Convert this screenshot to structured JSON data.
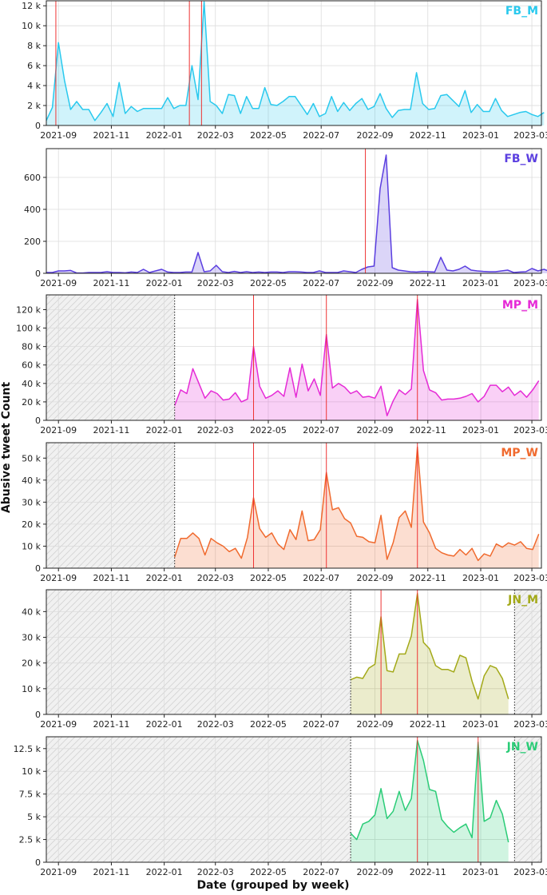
{
  "xlabel": "Date (grouped by week)",
  "ylabel": "Abusive tweet Count",
  "x_ticks": [
    "2021-09",
    "2021-11",
    "2022-01",
    "2022-03",
    "2022-05",
    "2022-07",
    "2022-09",
    "2022-11",
    "2023-01",
    "2023-03"
  ],
  "chart_data": [
    {
      "type": "area",
      "name": "FB_M",
      "color": "#29c9ee",
      "xlim": [
        "2021-08-18",
        "2023-03-12"
      ],
      "ylim": [
        0,
        12500
      ],
      "y_ticks": [
        {
          "v": 0,
          "label": "0"
        },
        {
          "v": 2000,
          "label": "2 k"
        },
        {
          "v": 4000,
          "label": "4 k"
        },
        {
          "v": 6000,
          "label": "6 k"
        },
        {
          "v": 8000,
          "label": "8 k"
        },
        {
          "v": 10000,
          "label": "10 k"
        },
        {
          "v": 12000,
          "label": "12 k"
        }
      ],
      "data_start": "2021-08-18",
      "values": [
        500,
        1800,
        8300,
        4500,
        1600,
        2400,
        1600,
        1600,
        500,
        1300,
        2200,
        900,
        4300,
        1200,
        1900,
        1400,
        1700,
        1700,
        1700,
        1700,
        2800,
        1700,
        2000,
        2000,
        6000,
        2600,
        12400,
        2400,
        2000,
        1200,
        3100,
        3000,
        1200,
        2900,
        1700,
        1700,
        3800,
        2100,
        2000,
        2400,
        2900,
        2900,
        2000,
        1100,
        2200,
        900,
        1200,
        2900,
        1400,
        2300,
        1500,
        2200,
        2700,
        1600,
        1900,
        3200,
        1700,
        800,
        1500,
        1600,
        1600,
        5300,
        2200,
        1600,
        1700,
        3000,
        3100,
        2500,
        1900,
        3500,
        1300,
        2100,
        1400,
        1400,
        2700,
        1500,
        900,
        1100,
        1300,
        1400,
        1100,
        900,
        1300
      ],
      "shade_before": null,
      "shade_after": null,
      "peaks": [
        "2021-08-29",
        "2022-01-30",
        "2022-02-13"
      ]
    },
    {
      "type": "area",
      "name": "FB_W",
      "color": "#5b3fe0",
      "xlim": [
        "2021-08-18",
        "2023-03-12"
      ],
      "ylim": [
        0,
        780
      ],
      "y_ticks": [
        {
          "v": 0,
          "label": "0"
        },
        {
          "v": 200,
          "label": "200"
        },
        {
          "v": 400,
          "label": "400"
        },
        {
          "v": 600,
          "label": "600"
        }
      ],
      "data_start": "2021-08-18",
      "values": [
        5,
        5,
        15,
        15,
        18,
        2,
        2,
        5,
        5,
        5,
        10,
        5,
        5,
        3,
        8,
        5,
        25,
        5,
        15,
        25,
        8,
        5,
        5,
        8,
        8,
        130,
        10,
        15,
        50,
        10,
        5,
        12,
        5,
        10,
        5,
        8,
        5,
        8,
        8,
        5,
        10,
        10,
        8,
        5,
        5,
        15,
        5,
        5,
        5,
        15,
        10,
        5,
        25,
        40,
        45,
        530,
        740,
        35,
        20,
        15,
        10,
        8,
        12,
        10,
        8,
        100,
        20,
        15,
        25,
        45,
        20,
        15,
        12,
        10,
        10,
        15,
        20,
        5,
        8,
        10,
        30,
        15,
        25,
        10,
        8,
        10,
        8
      ],
      "shade_before": null,
      "shade_after": null,
      "peaks": [
        "2022-08-21"
      ]
    },
    {
      "type": "area",
      "name": "MP_M",
      "color": "#e52ad6",
      "xlim": [
        "2021-08-18",
        "2023-03-12"
      ],
      "ylim": [
        0,
        136000
      ],
      "y_ticks": [
        {
          "v": 0,
          "label": "0"
        },
        {
          "v": 20000,
          "label": "20 k"
        },
        {
          "v": 40000,
          "label": "40 k"
        },
        {
          "v": 60000,
          "label": "60 k"
        },
        {
          "v": 80000,
          "label": "80 k"
        },
        {
          "v": 100000,
          "label": "100 k"
        },
        {
          "v": 120000,
          "label": "120 k"
        }
      ],
      "data_start": "2022-01-13",
      "values": [
        16000,
        33000,
        29000,
        56000,
        40000,
        24000,
        32000,
        29000,
        22000,
        23000,
        30000,
        20000,
        23000,
        80000,
        37000,
        24000,
        27000,
        32000,
        26000,
        57000,
        25000,
        61000,
        32000,
        45000,
        27000,
        93000,
        35000,
        40000,
        36000,
        29000,
        32000,
        25000,
        26000,
        24000,
        37000,
        5000,
        21000,
        33000,
        28000,
        34000,
        131000,
        54000,
        33000,
        30000,
        22000,
        23000,
        23000,
        24000,
        26000,
        29000,
        20000,
        26000,
        38000,
        38000,
        31000,
        36000,
        27000,
        32000,
        25000,
        33000,
        43000
      ],
      "shade_before": "2022-01-13",
      "shade_after": null,
      "peaks": [
        "2022-04-14",
        "2022-07-07",
        "2022-10-20"
      ]
    },
    {
      "type": "area",
      "name": "MP_W",
      "color": "#f06a2e",
      "xlim": [
        "2021-08-18",
        "2023-03-12"
      ],
      "ylim": [
        0,
        57000
      ],
      "y_ticks": [
        {
          "v": 0,
          "label": "0"
        },
        {
          "v": 10000,
          "label": "10 k"
        },
        {
          "v": 20000,
          "label": "20 k"
        },
        {
          "v": 30000,
          "label": "30 k"
        },
        {
          "v": 40000,
          "label": "40 k"
        },
        {
          "v": 50000,
          "label": "50 k"
        }
      ],
      "data_start": "2022-01-13",
      "values": [
        5000,
        13500,
        13500,
        16000,
        13500,
        6000,
        13500,
        11500,
        10000,
        7500,
        9000,
        4500,
        14000,
        32000,
        18000,
        14000,
        16000,
        11000,
        8500,
        17500,
        13000,
        26000,
        12500,
        13000,
        17500,
        43500,
        26500,
        27500,
        22500,
        20500,
        14500,
        14000,
        12000,
        11500,
        24000,
        4000,
        11500,
        23000,
        26000,
        18500,
        55000,
        21000,
        16000,
        9000,
        7000,
        6000,
        5500,
        8500,
        6000,
        9000,
        3500,
        6500,
        5500,
        11000,
        9500,
        11500,
        10500,
        12000,
        9000,
        8500,
        15500
      ],
      "shade_before": "2022-01-13",
      "shade_after": null,
      "peaks": [
        "2022-04-14",
        "2022-07-07",
        "2022-10-20"
      ]
    },
    {
      "type": "area",
      "name": "JN_M",
      "color": "#a3a918",
      "xlim": [
        "2021-08-18",
        "2023-03-12"
      ],
      "ylim": [
        0,
        48500
      ],
      "y_ticks": [
        {
          "v": 0,
          "label": "0"
        },
        {
          "v": 10000,
          "label": "10 k"
        },
        {
          "v": 20000,
          "label": "20 k"
        },
        {
          "v": 30000,
          "label": "30 k"
        },
        {
          "v": 40000,
          "label": "40 k"
        }
      ],
      "data_start": "2022-08-04",
      "values": [
        13500,
        14500,
        14000,
        18000,
        19500,
        38000,
        17000,
        16500,
        23500,
        23500,
        30500,
        47000,
        28000,
        25500,
        19000,
        17500,
        17500,
        16500,
        23000,
        22000,
        13000,
        6000,
        15000,
        19000,
        18000,
        14000,
        6000
      ],
      "shade_before": "2022-08-04",
      "shade_after": "2023-02-09",
      "peaks": [
        "2022-09-08",
        "2022-10-20"
      ]
    },
    {
      "type": "area",
      "name": "JN_W",
      "color": "#2bcc77",
      "xlim": [
        "2021-08-18",
        "2023-03-12"
      ],
      "ylim": [
        0,
        13800
      ],
      "y_ticks": [
        {
          "v": 0,
          "label": "0"
        },
        {
          "v": 2500,
          "label": "2.5 k"
        },
        {
          "v": 5000,
          "label": "5 k"
        },
        {
          "v": 7500,
          "label": "7.5 k"
        },
        {
          "v": 10000,
          "label": "10 k"
        },
        {
          "v": 12500,
          "label": "12.5 k"
        }
      ],
      "data_start": "2022-08-04",
      "values": [
        3200,
        2500,
        4200,
        4500,
        5200,
        8100,
        4800,
        5600,
        7800,
        5700,
        7000,
        13400,
        11200,
        8000,
        7800,
        4700,
        3900,
        3300,
        3800,
        4200,
        2700,
        13200,
        4500,
        4900,
        6800,
        5300,
        2200
      ],
      "shade_before": "2022-08-04",
      "shade_after": "2023-02-09",
      "peaks": [
        "2022-10-20",
        "2022-12-29"
      ]
    }
  ]
}
